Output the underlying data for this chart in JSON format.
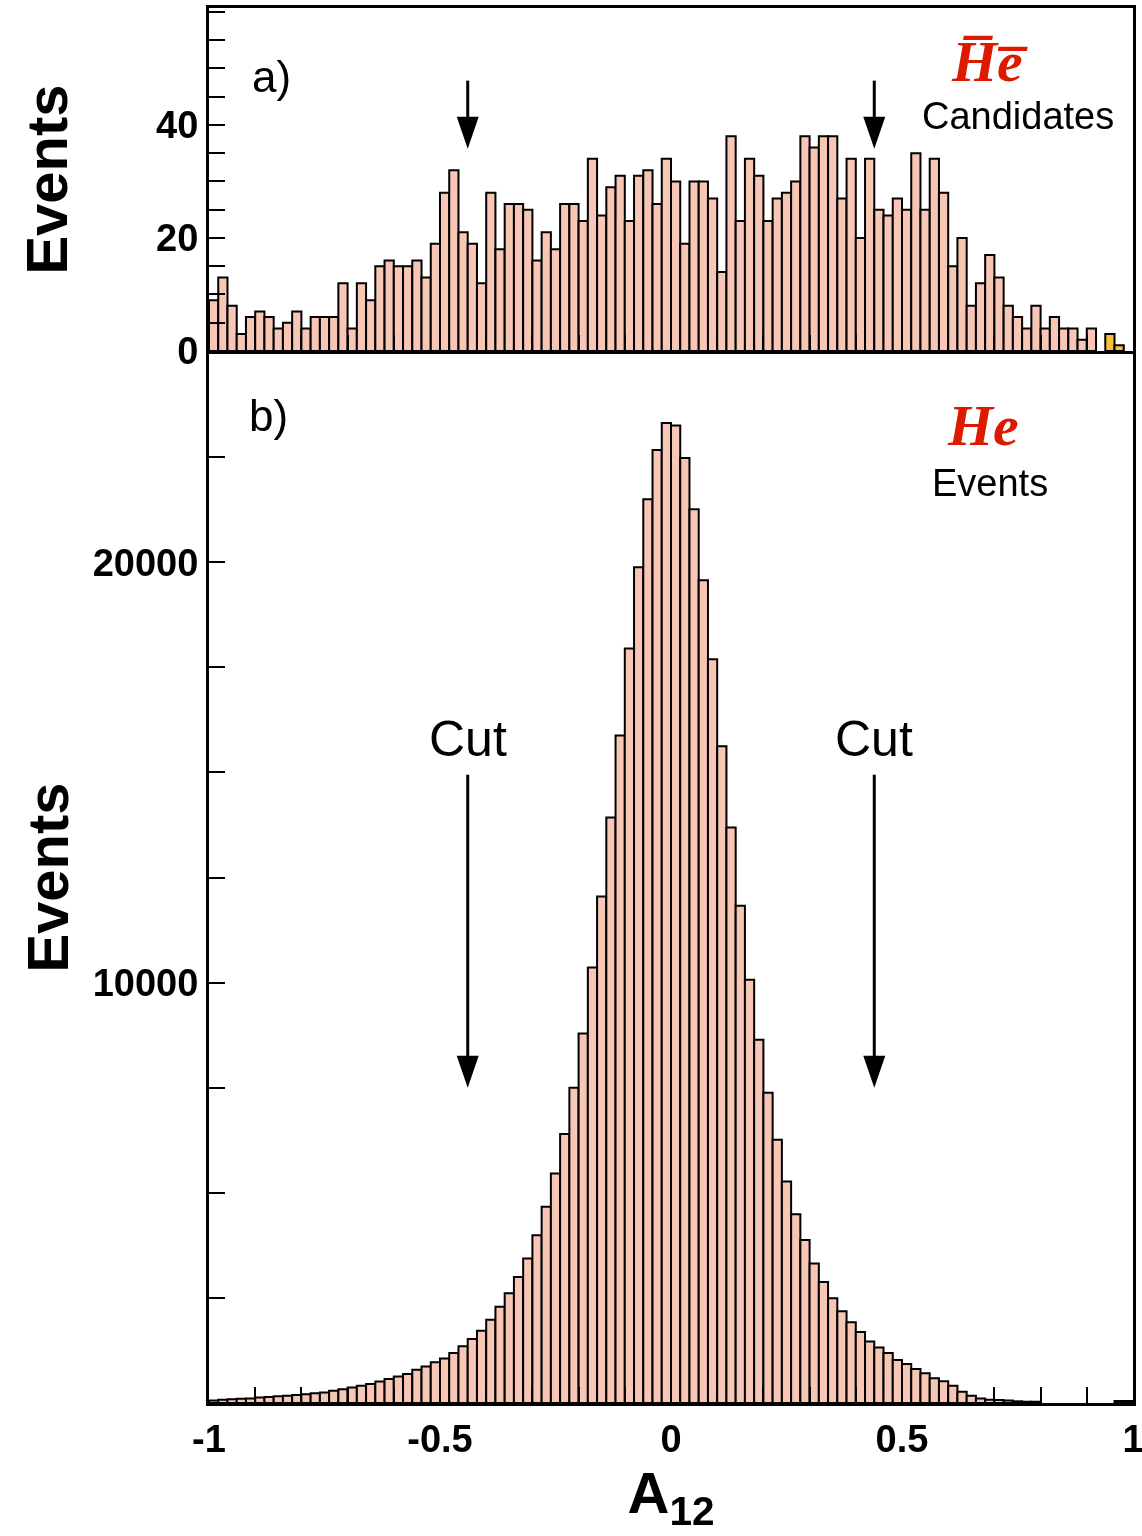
{
  "chart_data": [
    {
      "type": "histogram",
      "ylabel": "Events",
      "annotations": [
        "a)",
        "H̅e̅",
        "Candidates"
      ],
      "bins": [
        -1,
        -0.98,
        -0.96,
        -0.94,
        -0.92,
        -0.9,
        -0.88,
        -0.86,
        -0.84,
        -0.82,
        -0.8,
        -0.78,
        -0.76,
        -0.74,
        -0.72,
        -0.7,
        -0.68,
        -0.66,
        -0.64,
        -0.62,
        -0.6,
        -0.58,
        -0.56,
        -0.54,
        -0.52,
        -0.5,
        -0.48,
        -0.46,
        -0.44,
        -0.42,
        -0.4,
        -0.38,
        -0.36,
        -0.34,
        -0.32,
        -0.3,
        -0.28,
        -0.26,
        -0.24,
        -0.22,
        -0.2,
        -0.18,
        -0.16,
        -0.14,
        -0.12,
        -0.1,
        -0.08,
        -0.06,
        -0.04,
        -0.02,
        0,
        0.02,
        0.04,
        0.06,
        0.08,
        0.1,
        0.12,
        0.14,
        0.16,
        0.18,
        0.2,
        0.22,
        0.24,
        0.26,
        0.28,
        0.3,
        0.32,
        0.34,
        0.36,
        0.38,
        0.4,
        0.42,
        0.44,
        0.46,
        0.48,
        0.5,
        0.52,
        0.54,
        0.56,
        0.58,
        0.6,
        0.62,
        0.64,
        0.66,
        0.68,
        0.7,
        0.72,
        0.74,
        0.76,
        0.78,
        0.8,
        0.82,
        0.84,
        0.86,
        0.88,
        0.9,
        0.92,
        0.94,
        0.96,
        0.98,
        1
      ],
      "series": [
        {
          "color": "#f7c6b5",
          "values": [
            9,
            13,
            8,
            3,
            6,
            7,
            6,
            4,
            5,
            7,
            4,
            6,
            6,
            6,
            12,
            4,
            12,
            9,
            15,
            16,
            15,
            15,
            16,
            13,
            19,
            28,
            32,
            21,
            19,
            12,
            28,
            18,
            26,
            26,
            25,
            16,
            21,
            18,
            26,
            26,
            23,
            34,
            24,
            29,
            31,
            23,
            31,
            32,
            26,
            34,
            30,
            19,
            30,
            30,
            27,
            14,
            38,
            23,
            34,
            31,
            23,
            27,
            28,
            30,
            38,
            36,
            38,
            38,
            27,
            34,
            20,
            34,
            25,
            24,
            27,
            25,
            35,
            25,
            34,
            28,
            15,
            20,
            8,
            12,
            17,
            13,
            8,
            6,
            4,
            8,
            4,
            6,
            4,
            4,
            2,
            4,
            0,
            0,
            0,
            0
          ]
        },
        {
          "color": "#f6c03a",
          "values": [
            null,
            null,
            null,
            null,
            null,
            null,
            null,
            null,
            null,
            null,
            null,
            null,
            null,
            null,
            null,
            null,
            null,
            null,
            null,
            null,
            null,
            null,
            null,
            null,
            null,
            null,
            null,
            null,
            null,
            null,
            null,
            null,
            null,
            null,
            null,
            null,
            null,
            null,
            null,
            null,
            null,
            null,
            null,
            null,
            null,
            null,
            null,
            null,
            null,
            null,
            null,
            null,
            null,
            null,
            null,
            null,
            null,
            null,
            null,
            null,
            null,
            null,
            null,
            null,
            null,
            null,
            null,
            null,
            null,
            null,
            null,
            null,
            null,
            null,
            null,
            null,
            null,
            null,
            null,
            null,
            null,
            null,
            null,
            null,
            null,
            null,
            null,
            null,
            null,
            null,
            null,
            null,
            null,
            null,
            null,
            null,
            null,
            3,
            1,
            null
          ]
        }
      ],
      "xlim": [
        -1,
        1
      ],
      "xticks": [
        -1,
        {
          "value": -0.9,
          "label": null
        },
        {
          "value": -0.8,
          "label": null
        },
        {
          "value": -0.7,
          "label": null
        },
        {
          "value": -0.6,
          "label": null
        },
        -0.5,
        {
          "value": -0.4,
          "label": null
        },
        {
          "value": -0.3,
          "label": null
        },
        {
          "value": -0.2,
          "label": null
        },
        {
          "value": -0.1,
          "label": null
        },
        0,
        {
          "value": 0.1,
          "label": null
        },
        {
          "value": 0.2,
          "label": null
        },
        {
          "value": 0.3,
          "label": null
        },
        {
          "value": 0.4,
          "label": null
        },
        0.5,
        {
          "value": 0.6,
          "label": null
        },
        {
          "value": 0.7,
          "label": null
        },
        {
          "value": 0.8,
          "label": null
        },
        {
          "value": 0.9,
          "label": null
        },
        1
      ],
      "ylim": [
        0,
        60.7
      ],
      "yticks": [
        0,
        {
          "value": 5,
          "label": null
        },
        {
          "value": 10,
          "label": null
        },
        {
          "value": 15,
          "label": null
        },
        20,
        {
          "value": 25,
          "label": null
        },
        {
          "value": 30,
          "label": null
        },
        {
          "value": 35,
          "label": null
        },
        40,
        {
          "value": 45,
          "label": null
        },
        {
          "value": 50,
          "label": null
        },
        {
          "value": 55,
          "label": null
        },
        {
          "value": 60,
          "label": null
        }
      ],
      "tick_labels": "y",
      "ref_lines": [
        {
          "axis": "x",
          "value": -0.44
        },
        {
          "axis": "x",
          "value": 0.44
        }
      ]
    },
    {
      "type": "histogram",
      "xlabel": "A$_{12}$",
      "ylabel": "Events",
      "annotations": [
        "b)",
        "He",
        "Events"
      ],
      "bins": [
        -1,
        -0.98,
        -0.96,
        -0.94,
        -0.92,
        -0.9,
        -0.88,
        -0.86,
        -0.84,
        -0.82,
        -0.8,
        -0.78,
        -0.76,
        -0.74,
        -0.72,
        -0.7,
        -0.68,
        -0.66,
        -0.64,
        -0.62,
        -0.6,
        -0.58,
        -0.56,
        -0.54,
        -0.52,
        -0.5,
        -0.48,
        -0.46,
        -0.44,
        -0.42,
        -0.4,
        -0.38,
        -0.36,
        -0.34,
        -0.32,
        -0.3,
        -0.28,
        -0.26,
        -0.24,
        -0.22,
        -0.2,
        -0.18,
        -0.16,
        -0.14,
        -0.12,
        -0.1,
        -0.08,
        -0.06,
        -0.04,
        -0.02,
        0,
        0.02,
        0.04,
        0.06,
        0.08,
        0.1,
        0.12,
        0.14,
        0.16,
        0.18,
        0.2,
        0.22,
        0.24,
        0.26,
        0.28,
        0.3,
        0.32,
        0.34,
        0.36,
        0.38,
        0.4,
        0.42,
        0.44,
        0.46,
        0.48,
        0.5,
        0.52,
        0.54,
        0.56,
        0.58,
        0.6,
        0.62,
        0.64,
        0.66,
        0.68,
        0.7,
        0.72,
        0.74,
        0.76,
        0.78,
        0.8,
        0.82,
        0.84,
        0.86,
        0.88,
        0.9,
        0.92,
        0.94,
        0.96,
        0.98,
        1
      ],
      "series": [
        {
          "color": "#f7c6b5",
          "values": [
            60,
            80,
            90,
            100,
            110,
            130,
            140,
            160,
            170,
            190,
            210,
            230,
            250,
            290,
            330,
            370,
            410,
            450,
            510,
            570,
            630,
            690,
            790,
            870,
            970,
            1060,
            1190,
            1350,
            1520,
            1720,
            1980,
            2290,
            2610,
            3000,
            3440,
            3990,
            4670,
            5460,
            6400,
            7500,
            8790,
            10360,
            12050,
            13930,
            15880,
            17950,
            19880,
            21500,
            22670,
            23310,
            23250,
            22480,
            21260,
            19570,
            17690,
            15620,
            13690,
            11830,
            10070,
            8640,
            7380,
            6260,
            5270,
            4490,
            3880,
            3320,
            2880,
            2490,
            2180,
            1920,
            1690,
            1460,
            1320,
            1190,
            1020,
            930,
            810,
            710,
            590,
            520,
            410,
            270,
            170,
            110,
            80,
            70,
            60,
            40,
            30,
            30,
            null,
            null,
            null,
            null,
            null,
            null,
            null,
            null,
            50,
            50
          ]
        }
      ],
      "xlim": [
        -1,
        1
      ],
      "xticks": [
        -1,
        {
          "value": -0.9,
          "label": null
        },
        {
          "value": -0.8,
          "label": null
        },
        {
          "value": -0.7,
          "label": null
        },
        {
          "value": -0.6,
          "label": null
        },
        -0.5,
        {
          "value": -0.4,
          "label": null
        },
        {
          "value": -0.3,
          "label": null
        },
        {
          "value": -0.2,
          "label": null
        },
        {
          "value": -0.1,
          "label": null
        },
        0,
        {
          "value": 0.1,
          "label": null
        },
        {
          "value": 0.2,
          "label": null
        },
        {
          "value": 0.3,
          "label": null
        },
        {
          "value": 0.4,
          "label": null
        },
        0.5,
        {
          "value": 0.6,
          "label": null
        },
        {
          "value": 0.7,
          "label": null
        },
        {
          "value": 0.8,
          "label": null
        },
        {
          "value": 0.9,
          "label": null
        },
        1
      ],
      "ylim": [
        0,
        25000
      ],
      "yticks": [
        {
          "value": 2500,
          "label": null
        },
        {
          "value": 5000,
          "label": null
        },
        {
          "value": 7500,
          "label": null
        },
        10000,
        {
          "value": 12500,
          "label": null
        },
        {
          "value": 15000,
          "label": null
        },
        {
          "value": 17500,
          "label": null
        },
        20000,
        {
          "value": 22500,
          "label": null
        }
      ],
      "ref_lines": [
        {
          "axis": "x",
          "value": -0.44,
          "label": "Cut"
        },
        {
          "axis": "x",
          "value": 0.44,
          "label": "Cut"
        }
      ]
    }
  ]
}
